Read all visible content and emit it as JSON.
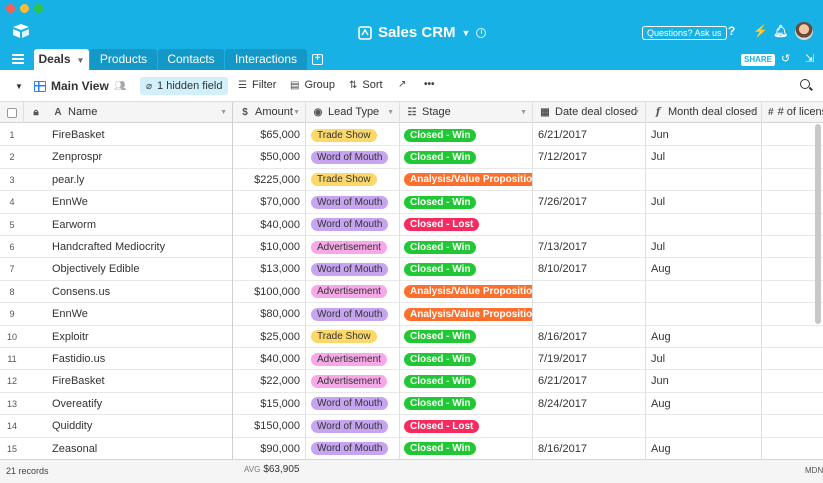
{
  "app": {
    "base_title": "Sales CRM",
    "help_label": "Questions? Ask us",
    "share_label": "SHARE",
    "colors": {
      "accent": "#18b1e6",
      "tab_inactive": "#1498c8"
    }
  },
  "tabs": [
    {
      "label": "Deals",
      "active": true
    },
    {
      "label": "Products",
      "active": false
    },
    {
      "label": "Contacts",
      "active": false
    },
    {
      "label": "Interactions",
      "active": false
    }
  ],
  "toolbar": {
    "view_name": "Main View",
    "hidden_field": "1 hidden field",
    "filter": "Filter",
    "group": "Group",
    "sort": "Sort"
  },
  "columns": {
    "name": "Name",
    "amount": "Amount",
    "lead_type": "Lead Type",
    "stage": "Stage",
    "date": "Date deal closed",
    "month": "Month deal closed",
    "licenses": "# of licens"
  },
  "lead_colors": {
    "Trade Show": "#fcd86a",
    "Word of Mouth": "#c6a4f0",
    "Advertisement": "#f7a8e8"
  },
  "stage_colors": {
    "Closed - Win": "#20c933",
    "Analysis/Value Proposition": "#ff6f2c",
    "Closed - Lost": "#f82b60"
  },
  "rows": [
    {
      "num": "1",
      "name": "FireBasket",
      "amount": "$65,000",
      "lead": "Trade Show",
      "stage": "Closed - Win",
      "date": "6/21/2017",
      "month": "Jun"
    },
    {
      "num": "2",
      "name": "Zenprospr",
      "amount": "$50,000",
      "lead": "Word of Mouth",
      "stage": "Closed - Win",
      "date": "7/12/2017",
      "month": "Jul"
    },
    {
      "num": "3",
      "name": "pear.ly",
      "amount": "$225,000",
      "lead": "Trade Show",
      "stage": "Analysis/Value Proposition",
      "date": "",
      "month": ""
    },
    {
      "num": "4",
      "name": "EnnWe",
      "amount": "$70,000",
      "lead": "Word of Mouth",
      "stage": "Closed - Win",
      "date": "7/26/2017",
      "month": "Jul"
    },
    {
      "num": "5",
      "name": "Earworm",
      "amount": "$40,000",
      "lead": "Word of Mouth",
      "stage": "Closed - Lost",
      "date": "",
      "month": ""
    },
    {
      "num": "6",
      "name": "Handcrafted Mediocrity",
      "amount": "$10,000",
      "lead": "Advertisement",
      "stage": "Closed - Win",
      "date": "7/13/2017",
      "month": "Jul"
    },
    {
      "num": "7",
      "name": "Objectively Edible",
      "amount": "$13,000",
      "lead": "Word of Mouth",
      "stage": "Closed - Win",
      "date": "8/10/2017",
      "month": "Aug"
    },
    {
      "num": "8",
      "name": "Consens.us",
      "amount": "$100,000",
      "lead": "Advertisement",
      "stage": "Analysis/Value Proposition",
      "date": "",
      "month": ""
    },
    {
      "num": "9",
      "name": "EnnWe",
      "amount": "$80,000",
      "lead": "Word of Mouth",
      "stage": "Analysis/Value Proposition",
      "date": "",
      "month": ""
    },
    {
      "num": "10",
      "name": "Exploitr",
      "amount": "$25,000",
      "lead": "Trade Show",
      "stage": "Closed - Win",
      "date": "8/16/2017",
      "month": "Aug"
    },
    {
      "num": "11",
      "name": "Fastidio.us",
      "amount": "$40,000",
      "lead": "Advertisement",
      "stage": "Closed - Win",
      "date": "7/19/2017",
      "month": "Jul"
    },
    {
      "num": "12",
      "name": "FireBasket",
      "amount": "$22,000",
      "lead": "Advertisement",
      "stage": "Closed - Win",
      "date": "6/21/2017",
      "month": "Jun"
    },
    {
      "num": "13",
      "name": "Overeatify",
      "amount": "$15,000",
      "lead": "Word of Mouth",
      "stage": "Closed - Win",
      "date": "8/24/2017",
      "month": "Aug"
    },
    {
      "num": "14",
      "name": "Quiddity",
      "amount": "$150,000",
      "lead": "Word of Mouth",
      "stage": "Closed - Lost",
      "date": "",
      "month": ""
    },
    {
      "num": "15",
      "name": "Zeasonal",
      "amount": "$90,000",
      "lead": "Word of Mouth",
      "stage": "Closed - Win",
      "date": "8/16/2017",
      "month": "Aug"
    }
  ],
  "footer": {
    "records": "21 records",
    "avg_label": "AVG",
    "avg_value": "$63,905",
    "mdn_label": "MDN"
  }
}
